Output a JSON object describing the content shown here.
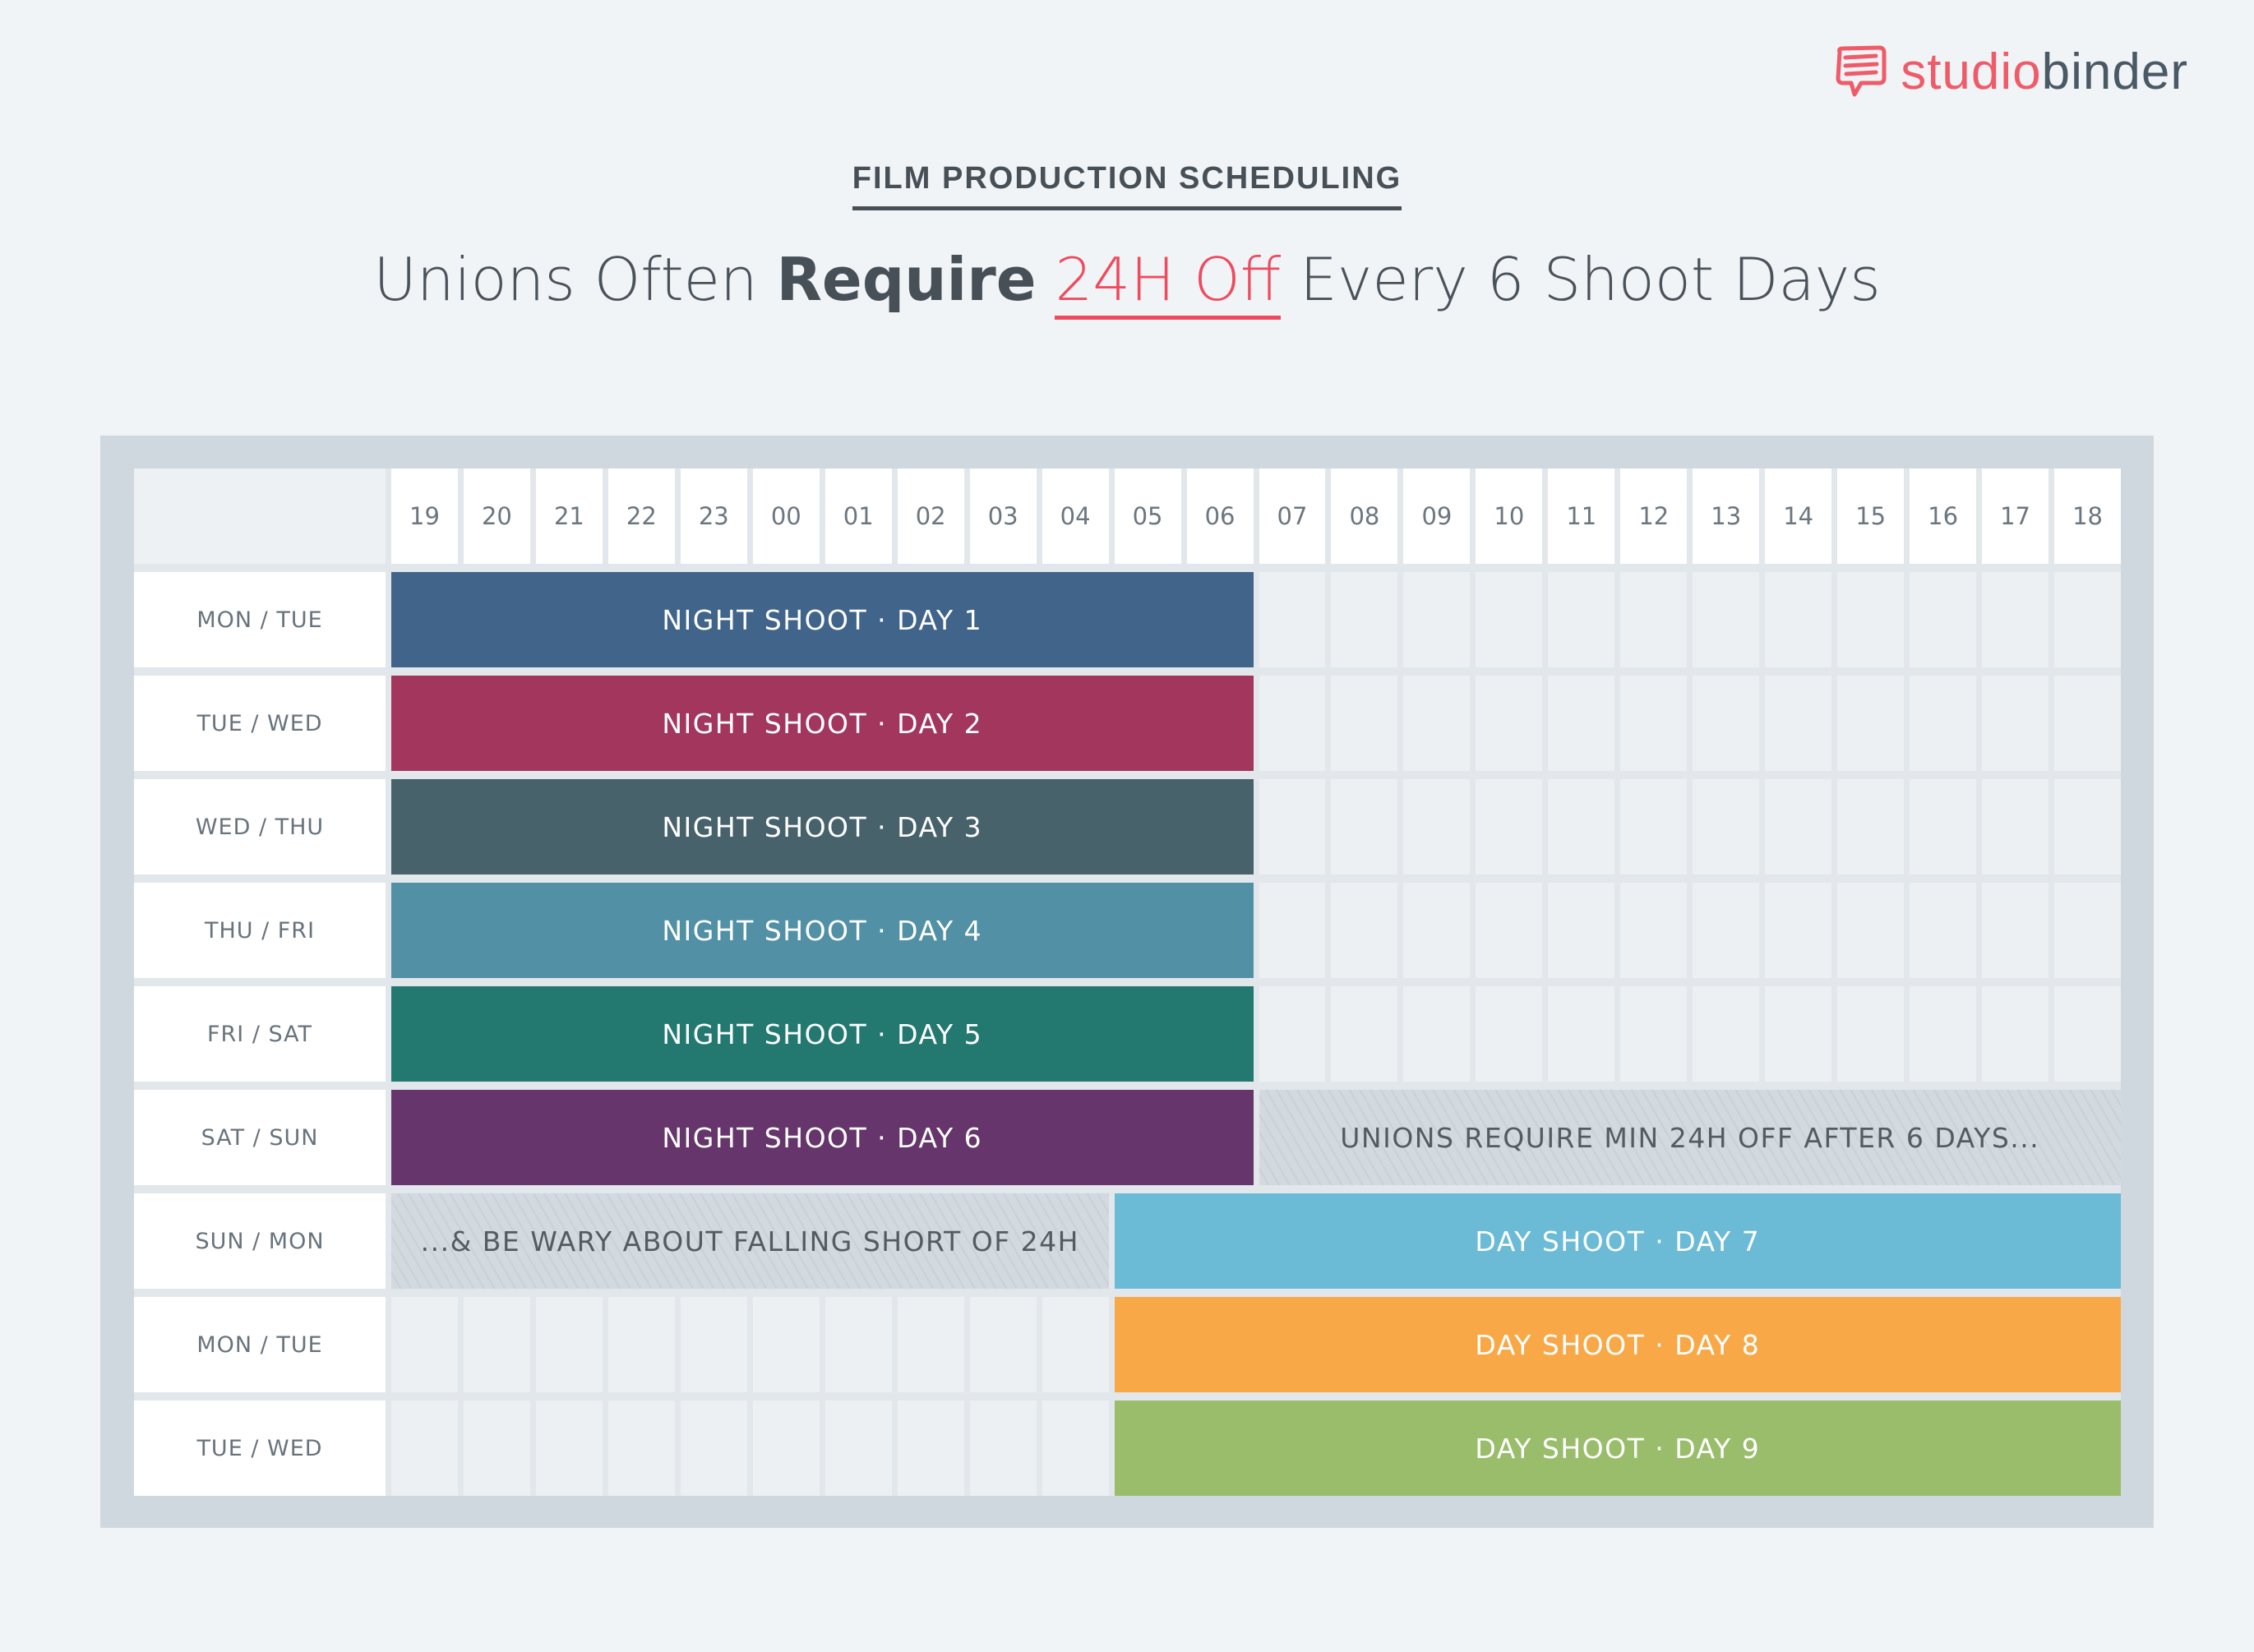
{
  "brand": {
    "part1": "studio",
    "part2": "binder",
    "icon": "chat-bubble-icon",
    "colors": {
      "accent": "#ef5b68",
      "dark": "#4a5966"
    }
  },
  "header": {
    "kicker": "FILM PRODUCTION SCHEDULING",
    "title_pre": "Unions Often ",
    "title_bold": "Require",
    "title_space": " ",
    "title_highlight": "24H Off",
    "title_post": " Every 6 Shoot Days"
  },
  "hours": [
    "19",
    "20",
    "21",
    "22",
    "23",
    "00",
    "01",
    "02",
    "03",
    "04",
    "05",
    "06",
    "07",
    "08",
    "09",
    "10",
    "11",
    "12",
    "13",
    "14",
    "15",
    "16",
    "17",
    "18"
  ],
  "rows": [
    {
      "label": "MON / TUE",
      "segments": [
        {
          "type": "bar",
          "text": "NIGHT SHOOT · DAY 1",
          "start": 0,
          "span": 12,
          "color": "#41648a"
        },
        {
          "type": "empty",
          "start": 12,
          "span": 12
        }
      ]
    },
    {
      "label": "TUE / WED",
      "segments": [
        {
          "type": "bar",
          "text": "NIGHT SHOOT · DAY 2",
          "start": 0,
          "span": 12,
          "color": "#a3365c"
        },
        {
          "type": "empty",
          "start": 12,
          "span": 12
        }
      ]
    },
    {
      "label": "WED / THU",
      "segments": [
        {
          "type": "bar",
          "text": "NIGHT SHOOT · DAY 3",
          "start": 0,
          "span": 12,
          "color": "#47626b"
        },
        {
          "type": "empty",
          "start": 12,
          "span": 12
        }
      ]
    },
    {
      "label": "THU / FRI",
      "segments": [
        {
          "type": "bar",
          "text": "NIGHT SHOOT · DAY 4",
          "start": 0,
          "span": 12,
          "color": "#5290a5"
        },
        {
          "type": "empty",
          "start": 12,
          "span": 12
        }
      ]
    },
    {
      "label": "FRI / SAT",
      "segments": [
        {
          "type": "bar",
          "text": "NIGHT SHOOT · DAY 5",
          "start": 0,
          "span": 12,
          "color": "#237870"
        },
        {
          "type": "empty",
          "start": 12,
          "span": 12
        }
      ]
    },
    {
      "label": "SAT / SUN",
      "segments": [
        {
          "type": "bar",
          "text": "NIGHT SHOOT · DAY 6",
          "start": 0,
          "span": 12,
          "color": "#66356b"
        },
        {
          "type": "note",
          "text": "UNIONS REQUIRE MIN 24H OFF AFTER 6 DAYS...",
          "start": 12,
          "span": 12
        }
      ]
    },
    {
      "label": "SUN / MON",
      "segments": [
        {
          "type": "note",
          "text": "...& BE WARY ABOUT FALLING SHORT OF 24H",
          "start": 0,
          "span": 10
        },
        {
          "type": "bar",
          "text": "DAY SHOOT · DAY 7",
          "start": 10,
          "span": 14,
          "color": "#6bbad6"
        }
      ]
    },
    {
      "label": "MON / TUE",
      "segments": [
        {
          "type": "empty",
          "start": 0,
          "span": 10
        },
        {
          "type": "bar",
          "text": "DAY SHOOT · DAY 8",
          "start": 10,
          "span": 14,
          "color": "#f8a847"
        }
      ]
    },
    {
      "label": "TUE / WED",
      "segments": [
        {
          "type": "empty",
          "start": 0,
          "span": 10
        },
        {
          "type": "bar",
          "text": "DAY SHOOT · DAY 9",
          "start": 10,
          "span": 14,
          "color": "#9abd6b"
        }
      ]
    }
  ]
}
